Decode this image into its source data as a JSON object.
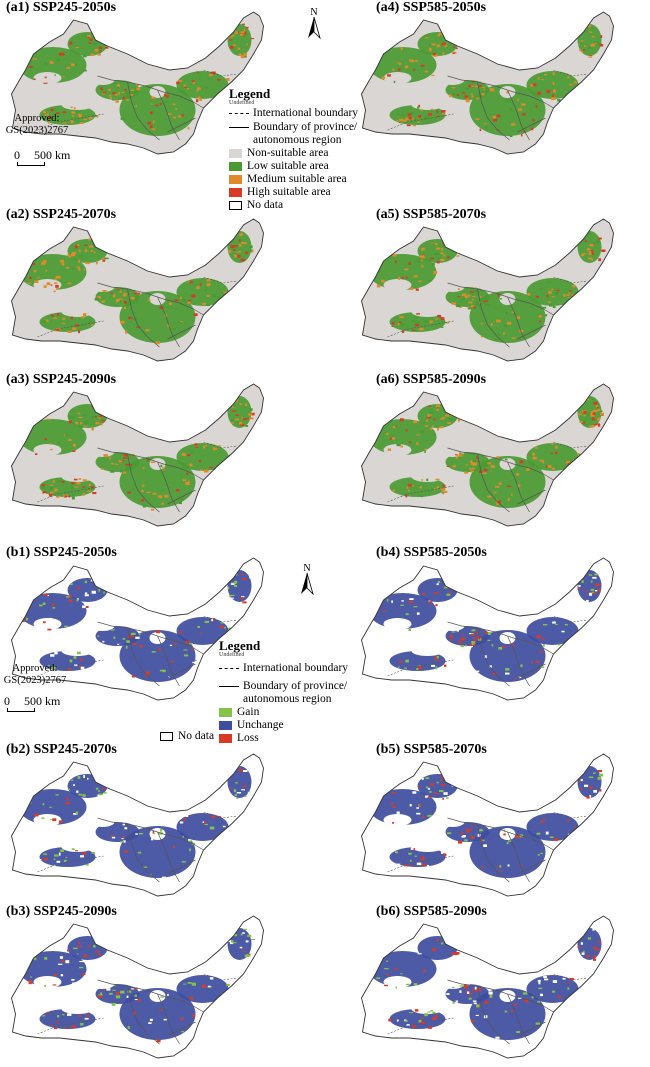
{
  "panels_a": [
    {
      "id": "a1",
      "title": "(a1) SSP245-2050s"
    },
    {
      "id": "a2",
      "title": "(a2) SSP245-2070s"
    },
    {
      "id": "a3",
      "title": "(a3) SSP245-2090s"
    },
    {
      "id": "a4",
      "title": "(a4) SSP585-2050s"
    },
    {
      "id": "a5",
      "title": "(a5) SSP585-2070s"
    },
    {
      "id": "a6",
      "title": "(a6) SSP585-2090s"
    }
  ],
  "panels_b": [
    {
      "id": "b1",
      "title": "(b1) SSP245-2050s"
    },
    {
      "id": "b2",
      "title": "(b2) SSP245-2070s"
    },
    {
      "id": "b3",
      "title": "(b3) SSP245-2090s"
    },
    {
      "id": "b4",
      "title": "(b4) SSP585-2050s"
    },
    {
      "id": "b5",
      "title": "(b5) SSP585-2070s"
    },
    {
      "id": "b6",
      "title": "(b6) SSP585-2090s"
    }
  ],
  "legend_a": {
    "title": "Legend",
    "subtitle": "Undefined",
    "intl_boundary": "International boundary",
    "prov_boundary_1": "Boundary of province/",
    "prov_boundary_2": "autonomous region",
    "classes": [
      {
        "label": "Non-suitable area",
        "color": "#d9d6d4"
      },
      {
        "label": "Low suitable area",
        "color": "#4a9a32"
      },
      {
        "label": "Medium suitable area",
        "color": "#e08a2a"
      },
      {
        "label": "High suitable area",
        "color": "#d93a25"
      },
      {
        "label": "No data",
        "color": "#ffffff"
      }
    ]
  },
  "legend_b": {
    "title": "Legend",
    "subtitle": "Undefined",
    "intl_boundary": "International boundary",
    "prov_boundary_1": "Boundary of province/",
    "prov_boundary_2": "autonomous region",
    "classes": [
      {
        "label": "Gain",
        "color": "#86c24a"
      },
      {
        "label": "Unchange",
        "color": "#3e4da0"
      },
      {
        "label": "Loss",
        "color": "#d93a25"
      }
    ],
    "no_data": "No data"
  },
  "approved_1": "Approved:",
  "approved_2": "GS(2023)2767",
  "scale_0": "0",
  "scale_500": "500 km",
  "north_label": "N",
  "colors": {
    "outline": "#333333",
    "nonsuitable": "#d9d6d4",
    "low": "#4a9a32",
    "medium": "#e08a2a",
    "high": "#d93a25",
    "gain": "#86c24a",
    "unchange": "#3e4da0",
    "loss": "#d93a25"
  }
}
